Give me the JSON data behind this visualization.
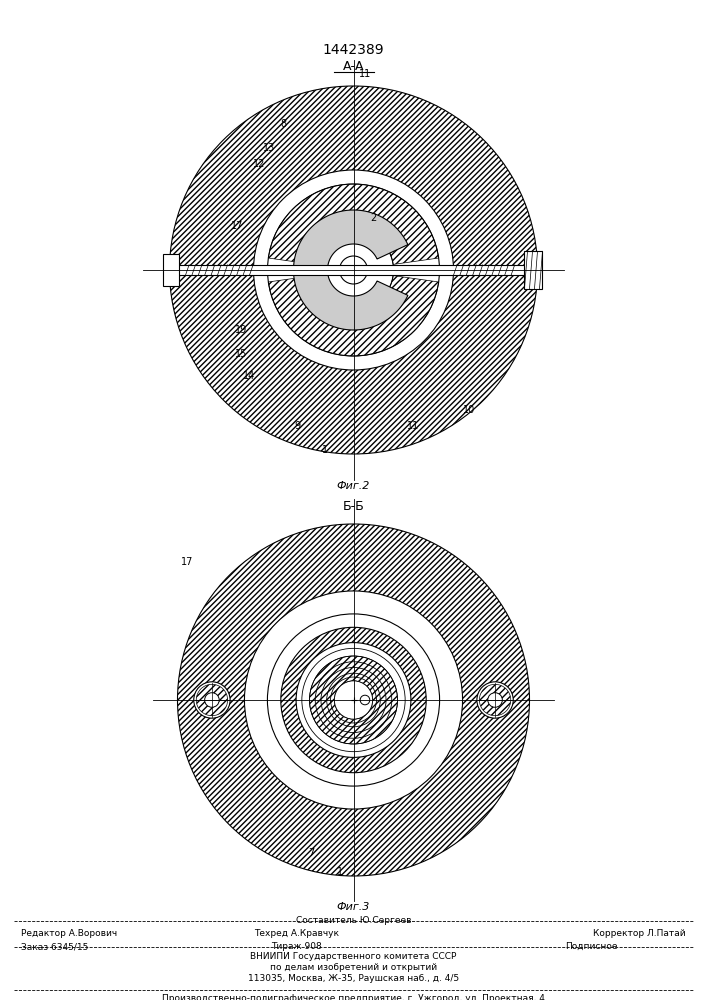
{
  "title": "1442389",
  "fig2_label": "А-А",
  "fig2_caption": "Фиг.2",
  "fig3_label": "Б-Б",
  "fig3_caption": "Фиг.3",
  "line_color": "#000000",
  "footer_line1": "Составитель Ю.Сергеев",
  "footer_editor": "Редактор А.Ворович",
  "footer_techred": "Техред А.Кравчук",
  "footer_corrector": "Корректор Л.Патай",
  "footer_order": "Заказ 6345/15",
  "footer_tirazh": "Тираж 908",
  "footer_podp": "Подписное",
  "footer_vniipи1": "ВНИИПИ Государственного комитета СССР",
  "footer_vniipи2": "по делам изобретений и открытий",
  "footer_vniipи3": "113035, Москва, Ж-35, Раушская наб., д. 4/5",
  "footer_factory": "Производственно-полиграфическое предприятие, г. Ужгород, ул. Проектная, 4"
}
